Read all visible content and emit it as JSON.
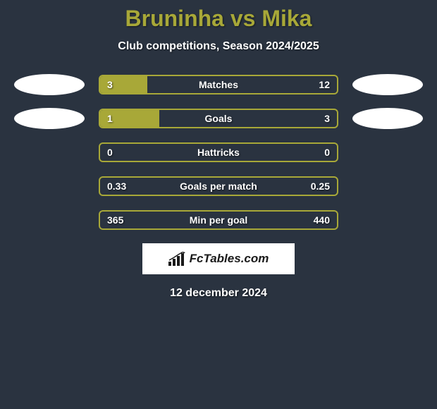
{
  "title": "Bruninha vs Mika",
  "subtitle": "Club competitions, Season 2024/2025",
  "colors": {
    "background": "#2a3340",
    "accent": "#a8a838",
    "text": "#ffffff",
    "title": "#a8a838"
  },
  "stats": [
    {
      "label": "Matches",
      "left_value": "3",
      "right_value": "12",
      "left_pct": 20,
      "right_pct": 0,
      "show_left_badge": true,
      "show_right_badge": true
    },
    {
      "label": "Goals",
      "left_value": "1",
      "right_value": "3",
      "left_pct": 25,
      "right_pct": 0,
      "show_left_badge": true,
      "show_right_badge": true
    },
    {
      "label": "Hattricks",
      "left_value": "0",
      "right_value": "0",
      "left_pct": 0,
      "right_pct": 0,
      "show_left_badge": false,
      "show_right_badge": false
    },
    {
      "label": "Goals per match",
      "left_value": "0.33",
      "right_value": "0.25",
      "left_pct": 0,
      "right_pct": 0,
      "show_left_badge": false,
      "show_right_badge": false
    },
    {
      "label": "Min per goal",
      "left_value": "365",
      "right_value": "440",
      "left_pct": 0,
      "right_pct": 0,
      "show_left_badge": false,
      "show_right_badge": false
    }
  ],
  "logo_text": "FcTables.com",
  "date": "12 december 2024"
}
